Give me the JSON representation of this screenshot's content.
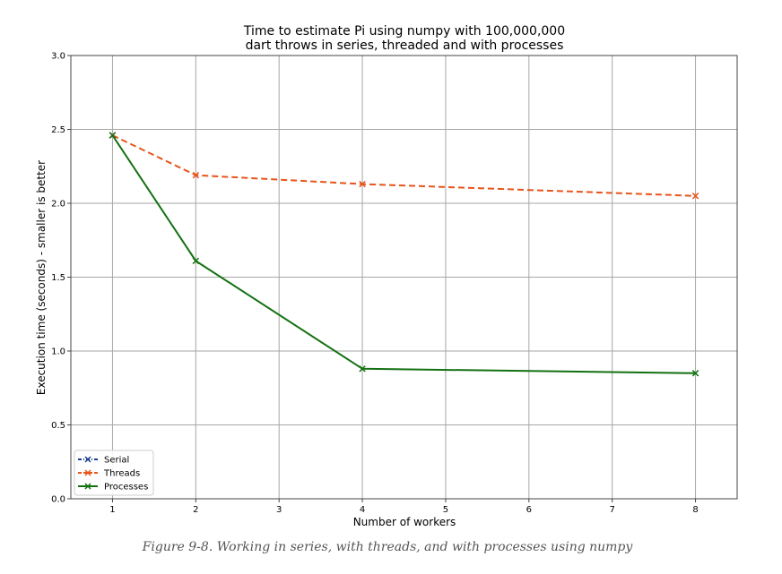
{
  "chart_data": {
    "type": "line",
    "title": "Time to estimate Pi using numpy with 100,000,000\ndart throws in series, threaded and with processes",
    "xlabel": "Number of workers",
    "ylabel": "Execution time (seconds) - smaller is better",
    "xlim": [
      0.5,
      8.5
    ],
    "ylim": [
      0.0,
      3.0
    ],
    "xticks": [
      1,
      2,
      3,
      4,
      5,
      6,
      7,
      8
    ],
    "yticks": [
      0.0,
      0.5,
      1.0,
      1.5,
      2.0,
      2.5,
      3.0
    ],
    "ytick_labels": [
      "0.0",
      "0.5",
      "1.0",
      "1.5",
      "2.0",
      "2.5",
      "3.0"
    ],
    "grid": true,
    "legend_position": "bottom-left",
    "series": [
      {
        "name": "Serial",
        "color": "#1f3f8f",
        "linestyle": "dashdot",
        "marker": "x",
        "x": [
          1
        ],
        "y": [
          2.46
        ]
      },
      {
        "name": "Threads",
        "color": "#e8541a",
        "linestyle": "dashed",
        "marker": "x",
        "x": [
          1,
          2,
          4,
          8
        ],
        "y": [
          2.46,
          2.19,
          2.13,
          2.05
        ]
      },
      {
        "name": "Processes",
        "color": "#137113",
        "linestyle": "solid",
        "marker": "x",
        "x": [
          1,
          2,
          4,
          8
        ],
        "y": [
          2.46,
          1.61,
          0.88,
          0.85
        ]
      }
    ]
  },
  "caption": "Figure 9-8. Working in series, with threads, and with processes using numpy"
}
